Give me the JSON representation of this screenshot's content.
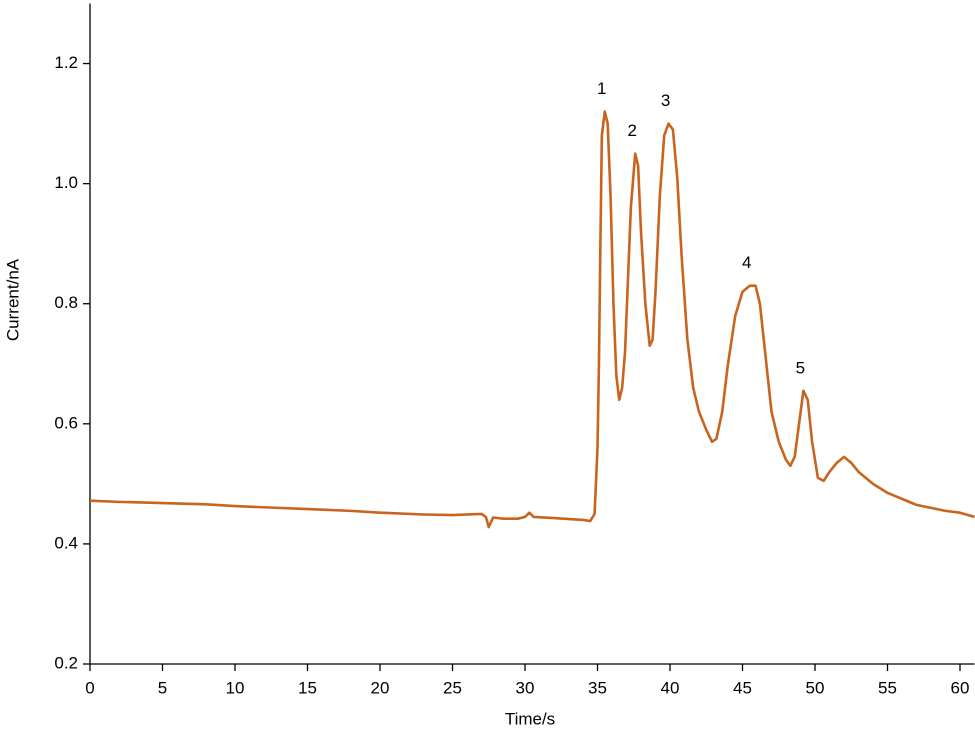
{
  "chart_data": {
    "type": "line",
    "x_label": "Time/s",
    "y_label": "Current/nA",
    "x": [
      0,
      2,
      5,
      8,
      10,
      13,
      15,
      18,
      20,
      23,
      25,
      27,
      27.3,
      27.5,
      27.8,
      28.5,
      29.5,
      30,
      30.3,
      30.6,
      32,
      34,
      34.5,
      34.8,
      35.0,
      35.1,
      35.2,
      35.3,
      35.5,
      35.7,
      35.9,
      36.1,
      36.3,
      36.5,
      36.7,
      36.9,
      37.1,
      37.3,
      37.6,
      37.8,
      38.0,
      38.3,
      38.6,
      38.8,
      39.0,
      39.3,
      39.6,
      39.9,
      40.2,
      40.5,
      40.8,
      41.2,
      41.6,
      42.0,
      42.5,
      42.9,
      43.2,
      43.6,
      44.0,
      44.5,
      45.0,
      45.5,
      45.9,
      46.2,
      46.6,
      47.0,
      47.5,
      48.0,
      48.3,
      48.6,
      48.9,
      49.2,
      49.5,
      49.8,
      50.2,
      50.6,
      51.0,
      51.5,
      52.0,
      52.5,
      53.0,
      54.0,
      55.0,
      56.0,
      57.0,
      58.0,
      59.0,
      60.0,
      61.0
    ],
    "series": [
      {
        "name": "Current",
        "color": "#c8641e",
        "values": [
          0.472,
          0.47,
          0.468,
          0.466,
          0.463,
          0.46,
          0.458,
          0.455,
          0.452,
          0.449,
          0.448,
          0.45,
          0.445,
          0.428,
          0.444,
          0.442,
          0.442,
          0.445,
          0.452,
          0.445,
          0.443,
          0.44,
          0.438,
          0.45,
          0.56,
          0.7,
          0.9,
          1.08,
          1.12,
          1.1,
          0.98,
          0.8,
          0.68,
          0.64,
          0.66,
          0.72,
          0.84,
          0.96,
          1.05,
          1.03,
          0.92,
          0.8,
          0.73,
          0.74,
          0.82,
          0.98,
          1.08,
          1.1,
          1.09,
          1.01,
          0.88,
          0.74,
          0.66,
          0.62,
          0.59,
          0.57,
          0.575,
          0.62,
          0.7,
          0.78,
          0.82,
          0.83,
          0.83,
          0.8,
          0.71,
          0.62,
          0.57,
          0.54,
          0.53,
          0.545,
          0.6,
          0.655,
          0.64,
          0.57,
          0.51,
          0.505,
          0.52,
          0.535,
          0.545,
          0.535,
          0.52,
          0.5,
          0.485,
          0.475,
          0.465,
          0.46,
          0.455,
          0.452,
          0.445
        ]
      }
    ],
    "annotations": [
      {
        "text": "1",
        "x": 35.5,
        "y": 1.12
      },
      {
        "text": "2",
        "x": 37.6,
        "y": 1.05
      },
      {
        "text": "3",
        "x": 39.9,
        "y": 1.1
      },
      {
        "text": "4",
        "x": 45.5,
        "y": 0.83
      },
      {
        "text": "5",
        "x": 49.2,
        "y": 0.655
      }
    ],
    "xlim": [
      0,
      61
    ],
    "xticks": [
      0,
      5,
      10,
      15,
      20,
      25,
      30,
      35,
      40,
      45,
      50,
      55,
      60
    ],
    "ylim": [
      0.2,
      1.3
    ],
    "yticks": [
      0.2,
      0.4,
      0.6,
      0.8,
      {
        "value": 1,
        "label": "1.0"
      },
      1.2
    ],
    "grid": false
  }
}
